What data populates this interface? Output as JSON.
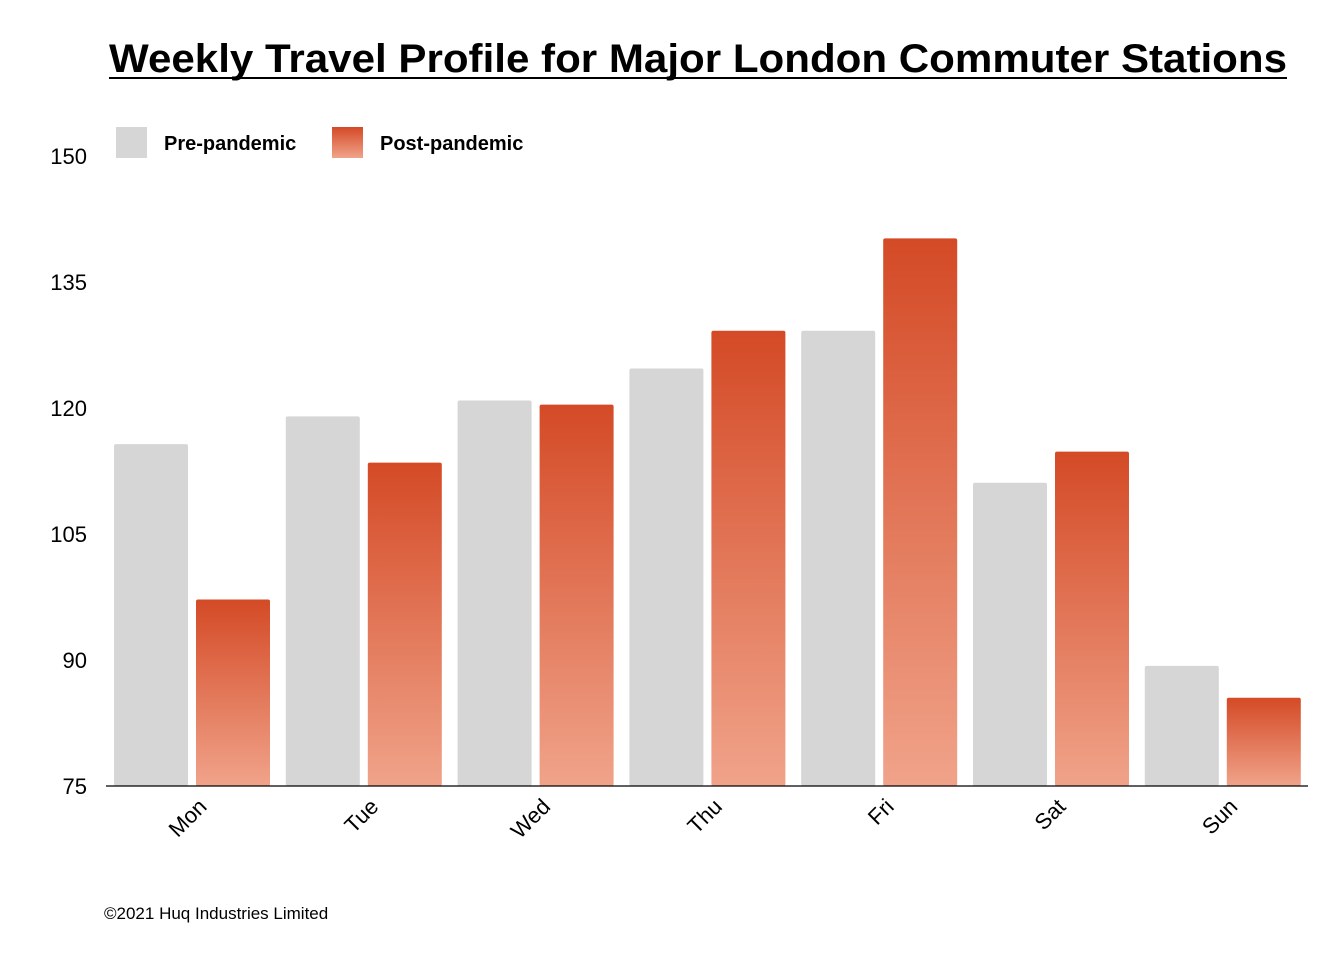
{
  "chart_data": {
    "type": "bar",
    "title": "Weekly Travel Profile for Major London Commuter Stations",
    "xlabel": "",
    "ylabel": "",
    "categories": [
      "Mon",
      "Tue",
      "Wed",
      "Thu",
      "Fri",
      "Sat",
      "Sun"
    ],
    "series": [
      {
        "name": "Pre-pandemic",
        "color": "#d6d6d6",
        "values": [
          115.7,
          119,
          120.9,
          124.7,
          129.2,
          111.1,
          89.3
        ]
      },
      {
        "name": "Post-pandemic",
        "color": "#d44a26",
        "values": [
          97.2,
          113.5,
          120.4,
          129.2,
          140.2,
          114.8,
          85.5
        ]
      }
    ],
    "ylim": [
      75,
      150
    ],
    "yticks": [
      "150",
      "135",
      "120",
      "105",
      "90",
      "75"
    ],
    "grid": false,
    "legend": "top-left"
  },
  "footer": {
    "copyright": "©2021 Huq Industries Limited"
  }
}
